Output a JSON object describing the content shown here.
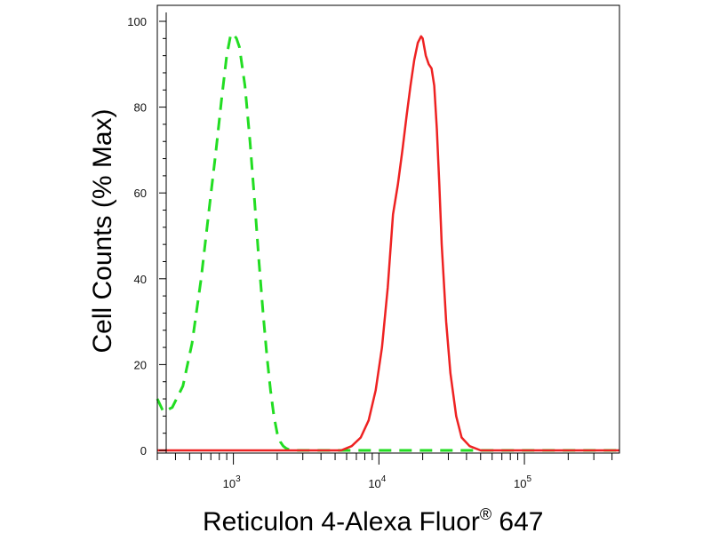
{
  "chart_data": {
    "type": "line",
    "title": "",
    "xlabel": {
      "main": "Reticulon 4-Alexa Fluor",
      "sup": "®",
      "tail": " 647"
    },
    "ylabel": "Cell Counts (% Max)",
    "x_scale": "log",
    "xlim": [
      300,
      450000
    ],
    "ylim": [
      0,
      100
    ],
    "x_ticks": [
      {
        "base": "10",
        "exp": "3",
        "value": 1000
      },
      {
        "base": "10",
        "exp": "4",
        "value": 10000
      },
      {
        "base": "10",
        "exp": "5",
        "value": 100000
      }
    ],
    "y_ticks": [
      "0",
      "20",
      "40",
      "60",
      "80",
      "100"
    ],
    "grid": false,
    "legend": "none",
    "series": [
      {
        "style": "dashed",
        "color": "#22dd22",
        "x": [
          300,
          330,
          380,
          450,
          520,
          600,
          680,
          760,
          830,
          900,
          960,
          1000,
          1050,
          1100,
          1200,
          1300,
          1400,
          1500,
          1600,
          1700,
          1800,
          1900,
          2000,
          2100,
          2200,
          2300,
          2400,
          2600,
          3000,
          4000,
          6000,
          10000,
          30000,
          100000,
          450000
        ],
        "y": [
          12,
          9,
          10,
          15,
          25,
          40,
          56,
          70,
          82,
          92,
          97,
          97,
          96,
          94,
          85,
          72,
          58,
          44,
          32,
          22,
          14,
          8,
          4,
          2,
          1,
          0.5,
          0.2,
          0,
          0,
          0,
          0,
          0,
          0,
          0,
          0
        ]
      },
      {
        "style": "solid",
        "color": "#ee2222",
        "x": [
          300,
          3000,
          5500,
          6500,
          7500,
          8500,
          9500,
          10500,
          11500,
          12500,
          13500,
          14500,
          15500,
          16500,
          17500,
          18500,
          19500,
          20000,
          21000,
          22000,
          23000,
          24000,
          25000,
          26000,
          27000,
          29000,
          31000,
          34000,
          37000,
          42000,
          50000,
          60000,
          100000,
          450000
        ],
        "y": [
          0,
          0,
          0,
          1,
          3,
          7,
          14,
          24,
          38,
          55,
          62,
          70,
          78,
          85,
          91,
          95,
          96.5,
          96,
          92,
          90,
          89,
          85,
          75,
          62,
          48,
          30,
          18,
          8,
          3,
          1,
          0,
          0,
          0,
          0
        ]
      }
    ]
  }
}
